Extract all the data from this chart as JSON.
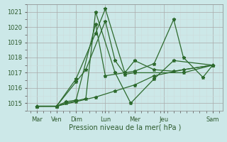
{
  "xlabel": "Pression niveau de la mer( hPa )",
  "bg_color": "#cce8e8",
  "grid_major_color": "#aaaaaa",
  "grid_minor_color": "#ccdddd",
  "line_color": "#2d6a2d",
  "ylim": [
    1014.5,
    1021.5
  ],
  "yticks": [
    1015,
    1016,
    1017,
    1018,
    1019,
    1020,
    1021
  ],
  "xlim": [
    0,
    10
  ],
  "day_labels": [
    "Mar",
    "Ven",
    "Dim",
    "Lun",
    "Mer",
    "Jeu",
    "Sam"
  ],
  "day_x": [
    0.5,
    1.5,
    2.5,
    4.0,
    5.5,
    7.0,
    9.5
  ],
  "series_x": [
    [
      0.5,
      1.5,
      2.5,
      3.5,
      4.0,
      5.0,
      5.5,
      6.5,
      7.5,
      9.5
    ],
    [
      0.5,
      1.5,
      2.5,
      3.0,
      4.0,
      4.5,
      5.0,
      5.5,
      8.0,
      9.5
    ],
    [
      0.5,
      1.5,
      2.0,
      3.0,
      3.5,
      4.5,
      5.3,
      6.5,
      7.5,
      9.5
    ],
    [
      0.5,
      1.5,
      2.0,
      2.5,
      3.5,
      4.0,
      5.5,
      6.5,
      7.5,
      8.0,
      9.0,
      9.5
    ],
    [
      0.5,
      1.5,
      2.5,
      3.5,
      4.5,
      5.5,
      6.5,
      8.0,
      9.5
    ]
  ],
  "series_y": [
    [
      1014.8,
      1014.8,
      1016.6,
      1019.6,
      1021.2,
      1017.0,
      1017.8,
      1017.2,
      1017.1,
      1017.5
    ],
    [
      1014.8,
      1014.8,
      1016.4,
      1017.2,
      1020.4,
      1017.8,
      1016.9,
      1017.0,
      1017.0,
      1017.5
    ],
    [
      1014.8,
      1014.8,
      1015.0,
      1015.3,
      1021.0,
      1017.0,
      1015.0,
      1016.6,
      1017.8,
      1017.5
    ],
    [
      1014.8,
      1014.8,
      1015.1,
      1015.2,
      1020.2,
      1016.8,
      1017.1,
      1017.6,
      1020.5,
      1018.0,
      1016.7,
      1017.5
    ],
    [
      1014.8,
      1014.8,
      1015.1,
      1015.4,
      1015.8,
      1016.2,
      1016.8,
      1017.2,
      1017.5
    ]
  ]
}
